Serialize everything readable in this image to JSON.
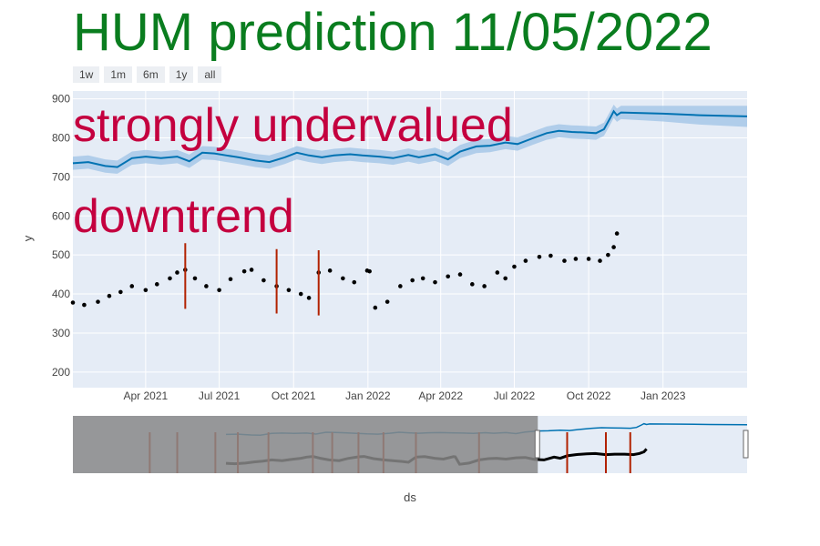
{
  "title": "HUM prediction 11/05/2022",
  "range_buttons": [
    "1w",
    "1m",
    "6m",
    "1y",
    "all"
  ],
  "colors": {
    "plot_bg": "#e5ecf6",
    "forecast_line": "#0072b2",
    "forecast_band": "#9ec3e6",
    "actual_points": "#000000",
    "changepoint": "#b22200",
    "annotation": "#c4003f",
    "title": "#0a7d1f",
    "slider_mask": "#888888"
  },
  "chart_data": {
    "type": "line",
    "xlabel": "ds",
    "ylabel": "y",
    "x_range": [
      "2021-01-01",
      "2023-04-15"
    ],
    "ylim": [
      160,
      920
    ],
    "yticks": [
      200,
      300,
      400,
      500,
      600,
      700,
      800,
      900
    ],
    "xticks": [
      {
        "date": "2021-04-01",
        "label": "Apr 2021"
      },
      {
        "date": "2021-07-01",
        "label": "Jul 2021"
      },
      {
        "date": "2021-10-01",
        "label": "Oct 2021"
      },
      {
        "date": "2022-01-01",
        "label": "Jan 2022"
      },
      {
        "date": "2022-04-01",
        "label": "Apr 2022"
      },
      {
        "date": "2022-07-01",
        "label": "Jul 2022"
      },
      {
        "date": "2022-10-01",
        "label": "Oct 2022"
      },
      {
        "date": "2023-01-01",
        "label": "Jan 2023"
      }
    ],
    "grid": true,
    "annotations": [
      "strongly undervalued",
      "downtrend"
    ],
    "series": [
      {
        "style": "line",
        "x": [
          "2021-01-01",
          "2021-01-20",
          "2021-02-10",
          "2021-02-25",
          "2021-03-15",
          "2021-04-01",
          "2021-04-20",
          "2021-05-10",
          "2021-05-25",
          "2021-06-10",
          "2021-06-25",
          "2021-07-10",
          "2021-07-25",
          "2021-08-15",
          "2021-09-01",
          "2021-09-20",
          "2021-10-05",
          "2021-10-20",
          "2021-11-05",
          "2021-11-20",
          "2021-12-10",
          "2021-12-25",
          "2022-01-15",
          "2022-02-01",
          "2022-02-20",
          "2022-03-05",
          "2022-03-25",
          "2022-04-10",
          "2022-04-25",
          "2022-05-15",
          "2022-06-01",
          "2022-06-20",
          "2022-07-05",
          "2022-07-25",
          "2022-08-10",
          "2022-08-25",
          "2022-09-10",
          "2022-09-25",
          "2022-10-10",
          "2022-10-20",
          "2022-10-28",
          "2022-11-01",
          "2022-11-05",
          "2022-11-10",
          "2023-01-01",
          "2023-02-15",
          "2023-04-15"
        ],
        "y": [
          735,
          738,
          728,
          725,
          748,
          752,
          748,
          752,
          740,
          762,
          760,
          755,
          750,
          742,
          738,
          750,
          762,
          755,
          750,
          755,
          758,
          755,
          752,
          748,
          756,
          750,
          758,
          745,
          765,
          778,
          780,
          788,
          784,
          800,
          812,
          818,
          815,
          814,
          812,
          822,
          852,
          868,
          858,
          865,
          862,
          858,
          855
        ],
        "upper": [
          752,
          755,
          745,
          742,
          765,
          769,
          765,
          769,
          757,
          779,
          777,
          772,
          767,
          759,
          755,
          767,
          779,
          772,
          767,
          772,
          775,
          772,
          769,
          765,
          773,
          767,
          775,
          762,
          782,
          795,
          797,
          805,
          801,
          817,
          829,
          835,
          832,
          831,
          829,
          839,
          869,
          885,
          875,
          882,
          882,
          882,
          882
        ],
        "lower": [
          718,
          721,
          711,
          708,
          731,
          735,
          731,
          735,
          723,
          745,
          743,
          738,
          733,
          725,
          721,
          733,
          745,
          738,
          733,
          738,
          741,
          738,
          735,
          731,
          739,
          733,
          741,
          728,
          748,
          761,
          763,
          771,
          767,
          783,
          795,
          801,
          798,
          797,
          795,
          805,
          835,
          851,
          841,
          848,
          842,
          834,
          828
        ]
      },
      {
        "style": "markers",
        "x": [
          "2021-01-01",
          "2021-01-15",
          "2021-02-01",
          "2021-02-15",
          "2021-03-01",
          "2021-03-15",
          "2021-04-01",
          "2021-04-15",
          "2021-05-01",
          "2021-05-10",
          "2021-05-20",
          "2021-06-01",
          "2021-06-15",
          "2021-07-01",
          "2021-07-15",
          "2021-08-01",
          "2021-08-10",
          "2021-08-25",
          "2021-09-10",
          "2021-09-25",
          "2021-10-10",
          "2021-10-20",
          "2021-11-01",
          "2021-11-15",
          "2021-12-01",
          "2021-12-15",
          "2021-12-31",
          "2022-01-03",
          "2022-01-10",
          "2022-01-25",
          "2022-02-10",
          "2022-02-25",
          "2022-03-10",
          "2022-03-25",
          "2022-04-10",
          "2022-04-25",
          "2022-05-10",
          "2022-05-25",
          "2022-06-10",
          "2022-06-20",
          "2022-07-01",
          "2022-07-15",
          "2022-08-01",
          "2022-08-15",
          "2022-09-01",
          "2022-09-15",
          "2022-10-01",
          "2022-10-15",
          "2022-10-25",
          "2022-11-01",
          "2022-11-05"
        ],
        "y": [
          378,
          372,
          380,
          395,
          405,
          420,
          410,
          425,
          440,
          455,
          462,
          440,
          420,
          410,
          438,
          458,
          462,
          435,
          420,
          410,
          400,
          390,
          455,
          460,
          440,
          430,
          460,
          458,
          365,
          380,
          420,
          435,
          440,
          430,
          445,
          450,
          425,
          420,
          455,
          440,
          470,
          485,
          495,
          498,
          485,
          490,
          490,
          485,
          500,
          520,
          555
        ]
      }
    ],
    "changepoints": [
      "2021-05-20",
      "2021-09-10",
      "2021-11-01"
    ],
    "changepoint_ranges": [
      [
        362,
        530
      ],
      [
        350,
        515
      ],
      [
        345,
        512
      ]
    ],
    "rangeslider": {
      "visible": true,
      "selected_range": [
        "2022-05-15",
        "2023-04-15"
      ],
      "full_range": [
        "2020-05-01",
        "2023-04-15"
      ],
      "changepoints": [
        "2020-09-01",
        "2020-10-15",
        "2020-12-15",
        "2021-01-20",
        "2021-03-10",
        "2021-05-20",
        "2021-06-20",
        "2021-08-01",
        "2021-09-10",
        "2021-11-01",
        "2022-02-10",
        "2022-07-01",
        "2022-09-01",
        "2022-10-10"
      ]
    }
  }
}
